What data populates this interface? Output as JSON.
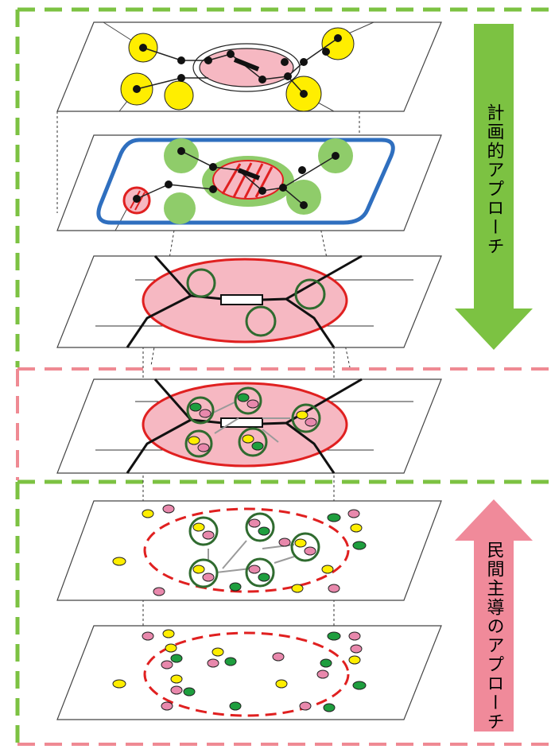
{
  "labels": {
    "planning_approach": "計画的アプローチ",
    "private_led_approach": "民間主導のアプローチ"
  },
  "colors": {
    "planning_frame": "#7cc242",
    "private_frame": "#ef8a93",
    "down_arrow": "#7cc242",
    "up_arrow": "#f08a9a",
    "zone_fill": "#f6b8c2",
    "zone_stroke": "#e02020",
    "blue_boundary": "#2f6fbf",
    "green_zone": "#8fcc6a",
    "dot_yellow": "#ffee00",
    "dot_pink": "#e888ac",
    "dot_green": "#1e9e3e",
    "ring_green": "#2f6b2f",
    "node_black": "#111111",
    "connector_gray": "#9a9a9a"
  },
  "layers": [
    "network-plan-layer",
    "zoning-plan-layer",
    "centers-plan-layer",
    "merged-layer",
    "emerging-clusters-layer",
    "scattered-activities-layer"
  ]
}
